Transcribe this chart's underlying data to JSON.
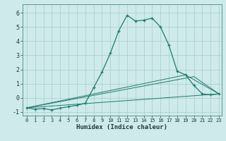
{
  "xlabel": "Humidex (Indice chaleur)",
  "bg_color": "#ceeaea",
  "line_color": "#1e7b6e",
  "grid_color": "#a8cccc",
  "xlim": [
    -0.5,
    23.3
  ],
  "ylim": [
    -1.25,
    6.6
  ],
  "xticks": [
    0,
    1,
    2,
    3,
    4,
    5,
    6,
    7,
    8,
    9,
    10,
    11,
    12,
    13,
    14,
    15,
    16,
    17,
    18,
    19,
    20,
    21,
    22,
    23
  ],
  "yticks": [
    -1,
    0,
    1,
    2,
    3,
    4,
    5,
    6
  ],
  "series": [
    [
      0,
      -0.7
    ],
    [
      1,
      -0.8
    ],
    [
      2,
      -0.75
    ],
    [
      3,
      -0.85
    ],
    [
      4,
      -0.72
    ],
    [
      5,
      -0.62
    ],
    [
      6,
      -0.52
    ],
    [
      7,
      -0.38
    ],
    [
      8,
      0.72
    ],
    [
      9,
      1.82
    ],
    [
      10,
      3.15
    ],
    [
      11,
      4.72
    ],
    [
      12,
      5.82
    ],
    [
      13,
      5.42
    ],
    [
      14,
      5.48
    ],
    [
      15,
      5.62
    ],
    [
      16,
      5.0
    ],
    [
      17,
      3.72
    ],
    [
      18,
      1.88
    ],
    [
      19,
      1.62
    ],
    [
      20,
      0.88
    ],
    [
      21,
      0.28
    ],
    [
      22,
      0.22
    ],
    [
      23,
      0.28
    ]
  ],
  "line2": [
    [
      0,
      -0.7
    ],
    [
      23,
      0.28
    ]
  ],
  "line3": [
    [
      0,
      -0.7
    ],
    [
      19,
      1.62
    ],
    [
      23,
      0.28
    ]
  ],
  "line4": [
    [
      0,
      -0.7
    ],
    [
      20,
      1.5
    ],
    [
      23,
      0.28
    ]
  ]
}
